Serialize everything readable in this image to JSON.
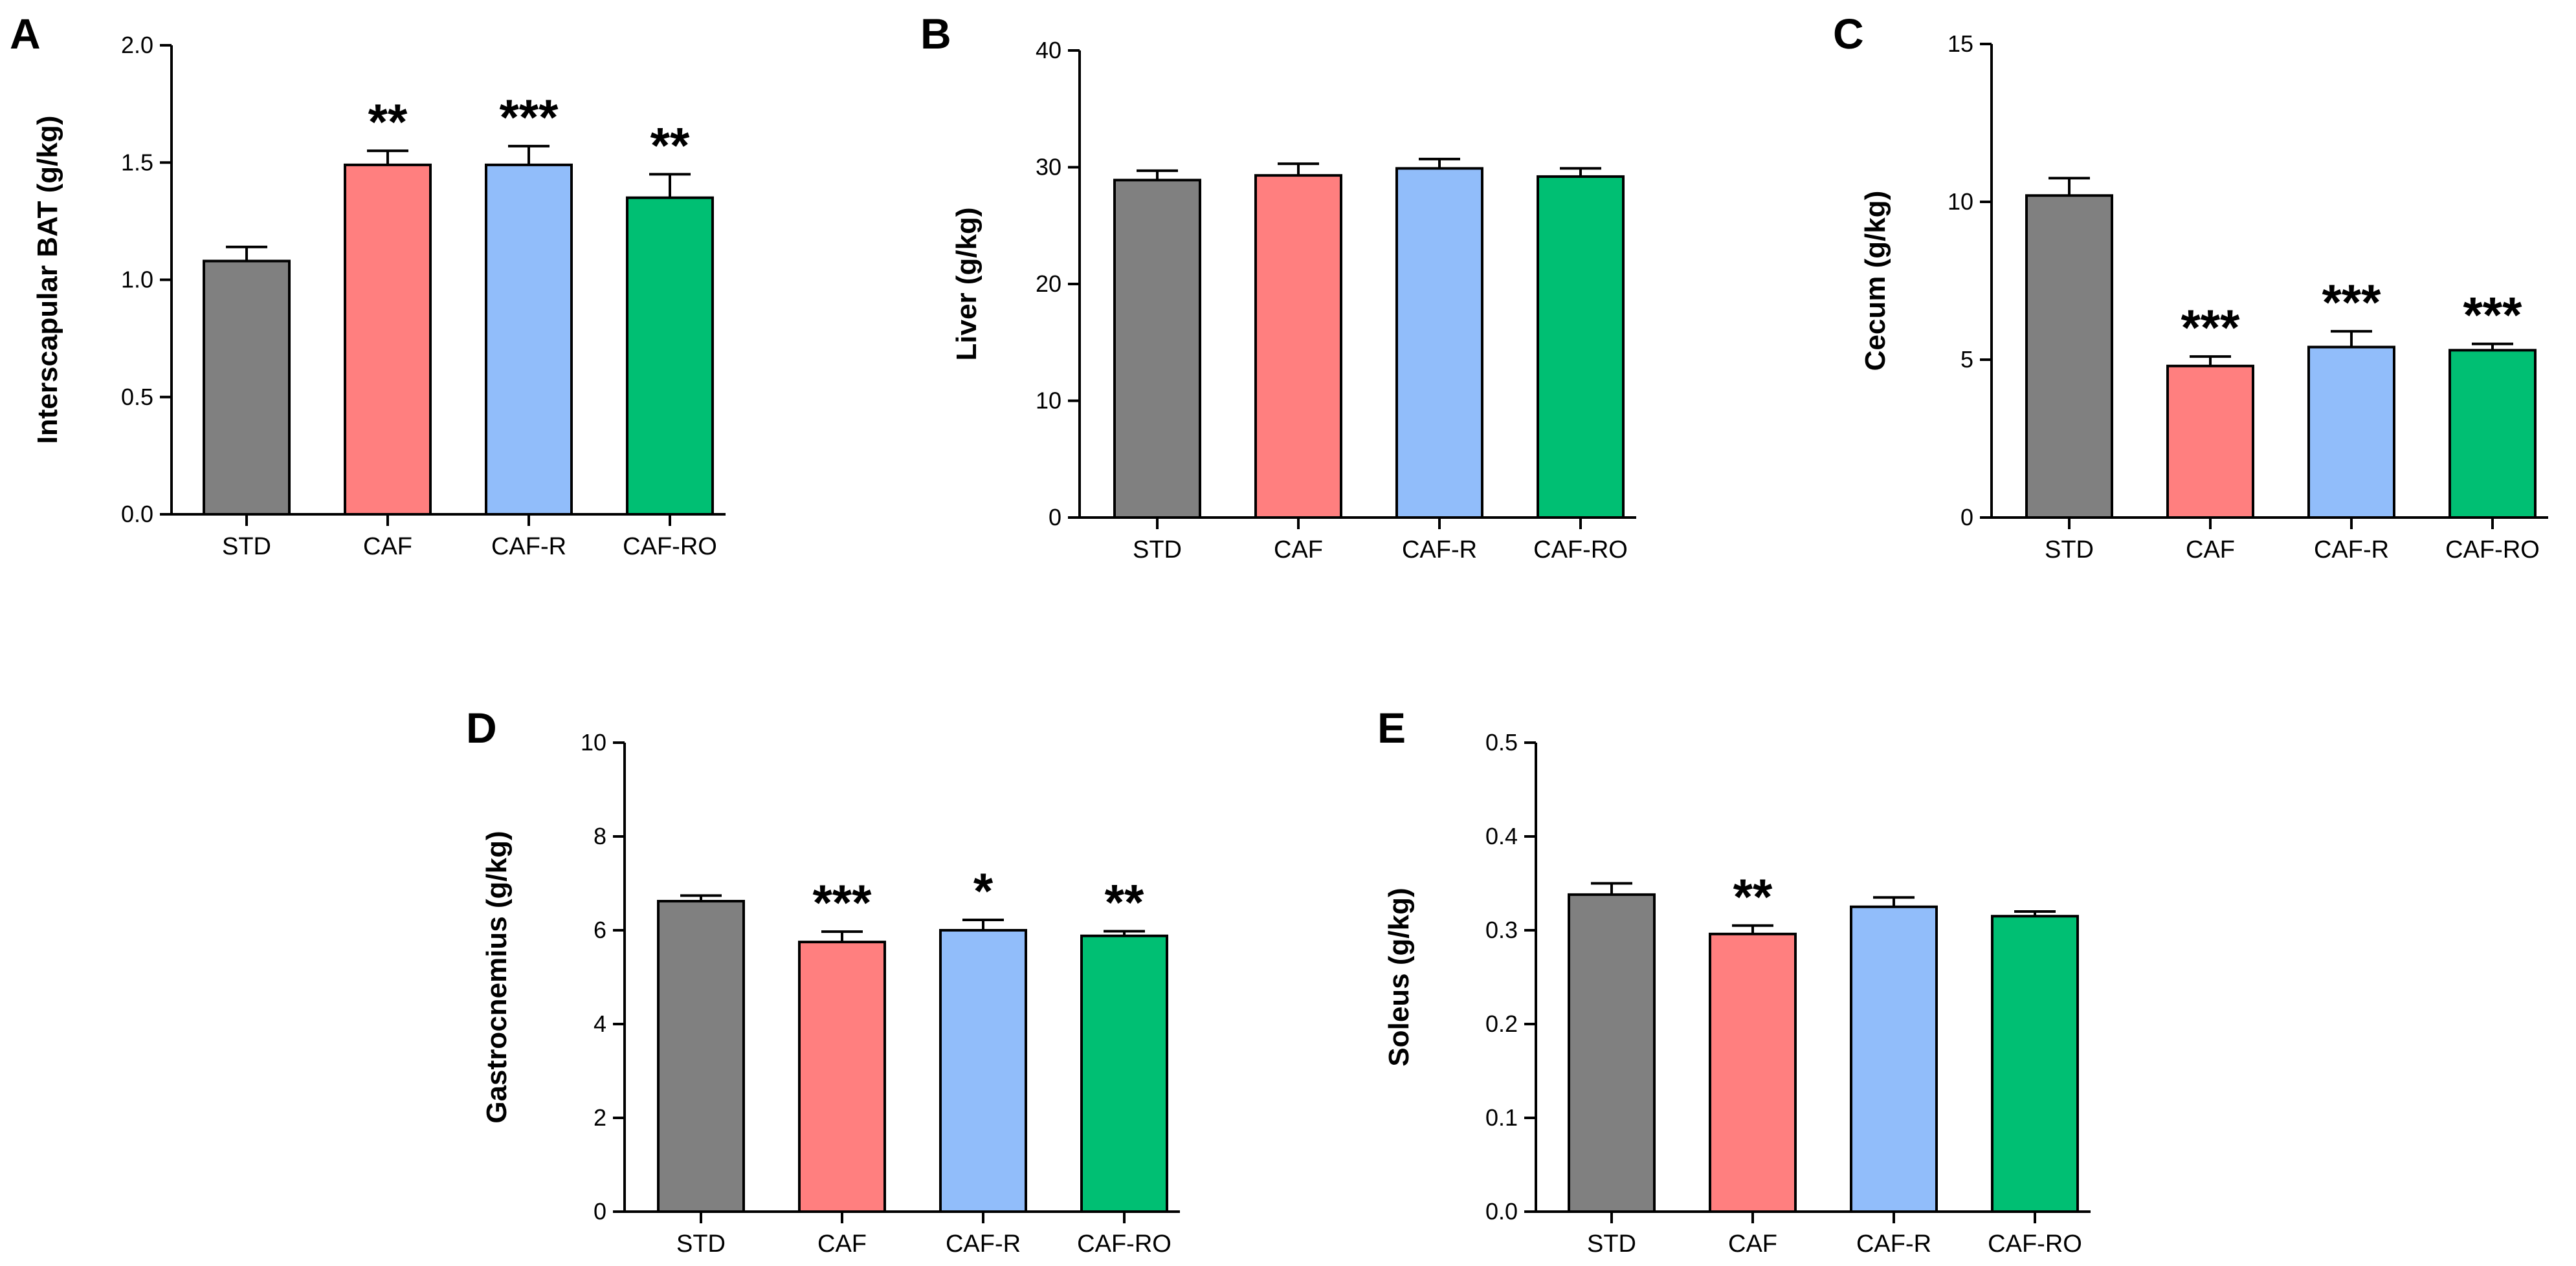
{
  "chart_data": [
    {
      "panel": "A",
      "type": "bar",
      "ylabel": "Interscapular BAT (g/kg)",
      "ylim": [
        0,
        2.0
      ],
      "yticks": [
        "0.0",
        "0.5",
        "1.0",
        "1.5",
        "2.0"
      ],
      "categories": [
        "STD",
        "CAF",
        "CAF-R",
        "CAF-RO"
      ],
      "values": [
        1.08,
        1.49,
        1.49,
        1.35
      ],
      "errors": [
        0.06,
        0.06,
        0.08,
        0.1
      ],
      "significance": [
        "",
        "**",
        "***",
        "**"
      ],
      "colors": [
        "#808080",
        "#ff7f7f",
        "#91bdfa",
        "#00bf73"
      ]
    },
    {
      "panel": "B",
      "type": "bar",
      "ylabel": "Liver (g/kg)",
      "ylim": [
        0,
        40
      ],
      "yticks": [
        "0",
        "10",
        "20",
        "30",
        "40"
      ],
      "categories": [
        "STD",
        "CAF",
        "CAF-R",
        "CAF-RO"
      ],
      "values": [
        28.9,
        29.3,
        29.9,
        29.2
      ],
      "errors": [
        0.8,
        1.0,
        0.8,
        0.7
      ],
      "significance": [
        "",
        "",
        "",
        ""
      ],
      "colors": [
        "#808080",
        "#ff7f7f",
        "#91bdfa",
        "#00bf73"
      ]
    },
    {
      "panel": "C",
      "type": "bar",
      "ylabel": "Cecum (g/kg)",
      "ylim": [
        0,
        15
      ],
      "yticks": [
        "0",
        "5",
        "10",
        "15"
      ],
      "categories": [
        "STD",
        "CAF",
        "CAF-R",
        "CAF-RO"
      ],
      "values": [
        10.2,
        4.8,
        5.4,
        5.3
      ],
      "errors": [
        0.55,
        0.3,
        0.5,
        0.2
      ],
      "significance": [
        "",
        "***",
        "***",
        "***"
      ],
      "colors": [
        "#808080",
        "#ff7f7f",
        "#91bdfa",
        "#00bf73"
      ]
    },
    {
      "panel": "D",
      "type": "bar",
      "ylabel": "Gastrocnemius (g/kg)",
      "ylim": [
        0,
        10
      ],
      "yticks": [
        "0",
        "2",
        "4",
        "6",
        "8",
        "10"
      ],
      "categories": [
        "STD",
        "CAF",
        "CAF-R",
        "CAF-RO"
      ],
      "values": [
        6.62,
        5.75,
        6.0,
        5.88
      ],
      "errors": [
        0.12,
        0.22,
        0.22,
        0.1
      ],
      "significance": [
        "",
        "***",
        "*",
        "**"
      ],
      "colors": [
        "#808080",
        "#ff7f7f",
        "#91bdfa",
        "#00bf73"
      ]
    },
    {
      "panel": "E",
      "type": "bar",
      "ylabel": "Soleus (g/kg)",
      "ylim": [
        0,
        0.5
      ],
      "yticks": [
        "0.0",
        "0.1",
        "0.2",
        "0.3",
        "0.4",
        "0.5"
      ],
      "categories": [
        "STD",
        "CAF",
        "CAF-R",
        "CAF-RO"
      ],
      "values": [
        0.338,
        0.296,
        0.325,
        0.315
      ],
      "errors": [
        0.012,
        0.009,
        0.01,
        0.005
      ],
      "significance": [
        "",
        "**",
        "",
        ""
      ],
      "colors": [
        "#808080",
        "#ff7f7f",
        "#91bdfa",
        "#00bf73"
      ]
    }
  ]
}
